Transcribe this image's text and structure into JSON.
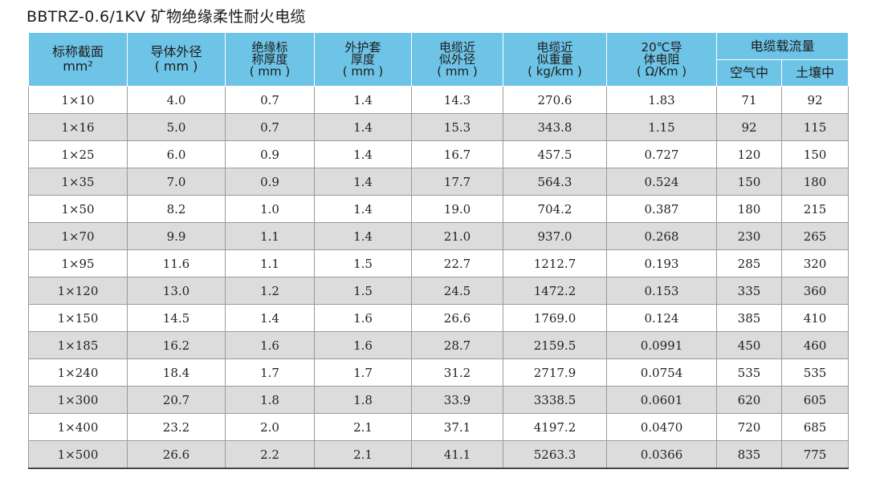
{
  "title": "BBTRZ-0.6/1KV 矿物绝缘柔性耐火电缆",
  "header": {
    "col1": [
      "标称截面",
      "mm²"
    ],
    "col2": [
      "导体外径",
      "( mm )"
    ],
    "col3": [
      "绝缘标",
      "称厚度",
      "( mm )"
    ],
    "col4": [
      "外护套",
      "厚度",
      "( mm )"
    ],
    "col5": [
      "电缆近",
      "似外径",
      "( mm )"
    ],
    "col6": [
      "电缆近",
      "似重量",
      "( kg/km )"
    ],
    "col7": [
      "20℃导",
      "体电阻",
      "( Ω/Km )"
    ],
    "group": "电缆载流量",
    "sub_air": "空气中",
    "sub_soil": "土壤中"
  },
  "rows": [
    [
      "1×10",
      "4.0",
      "0.7",
      "1.4",
      "14.3",
      "270.6",
      "1.83",
      "71",
      "92"
    ],
    [
      "1×16",
      "5.0",
      "0.7",
      "1.4",
      "15.3",
      "343.8",
      "1.15",
      "92",
      "115"
    ],
    [
      "1×25",
      "6.0",
      "0.9",
      "1.4",
      "16.7",
      "457.5",
      "0.727",
      "120",
      "150"
    ],
    [
      "1×35",
      "7.0",
      "0.9",
      "1.4",
      "17.7",
      "564.3",
      "0.524",
      "150",
      "180"
    ],
    [
      "1×50",
      "8.2",
      "1.0",
      "1.4",
      "19.0",
      "704.2",
      "0.387",
      "180",
      "215"
    ],
    [
      "1×70",
      "9.9",
      "1.1",
      "1.4",
      "21.0",
      "937.0",
      "0.268",
      "230",
      "265"
    ],
    [
      "1×95",
      "11.6",
      "1.1",
      "1.5",
      "22.7",
      "1212.7",
      "0.193",
      "285",
      "320"
    ],
    [
      "1×120",
      "13.0",
      "1.2",
      "1.5",
      "24.5",
      "1472.2",
      "0.153",
      "335",
      "360"
    ],
    [
      "1×150",
      "14.5",
      "1.4",
      "1.6",
      "26.6",
      "1769.0",
      "0.124",
      "385",
      "410"
    ],
    [
      "1×185",
      "16.2",
      "1.6",
      "1.6",
      "28.7",
      "2159.5",
      "0.0991",
      "450",
      "460"
    ],
    [
      "1×240",
      "18.4",
      "1.7",
      "1.7",
      "31.2",
      "2717.9",
      "0.0754",
      "535",
      "535"
    ],
    [
      "1×300",
      "20.7",
      "1.8",
      "1.8",
      "33.9",
      "3338.5",
      "0.0601",
      "620",
      "605"
    ],
    [
      "1×400",
      "23.2",
      "2.0",
      "2.1",
      "37.1",
      "4197.2",
      "0.0470",
      "720",
      "685"
    ],
    [
      "1×500",
      "26.6",
      "2.2",
      "2.1",
      "41.1",
      "5263.3",
      "0.0366",
      "835",
      "775"
    ]
  ]
}
